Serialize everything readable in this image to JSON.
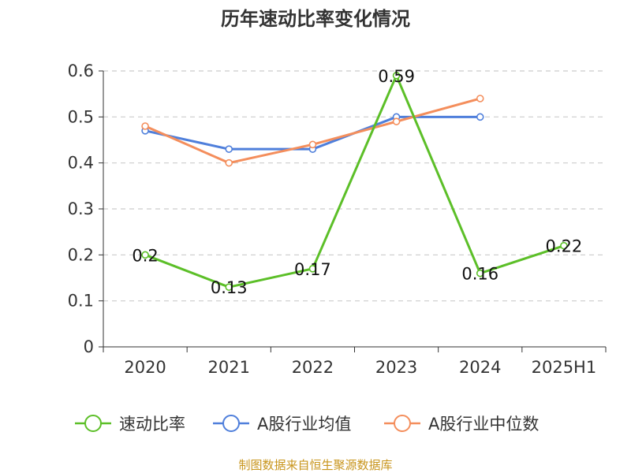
{
  "chart_data": {
    "type": "line",
    "title": "历年速动比率变化情况",
    "categories": [
      "2020",
      "2021",
      "2022",
      "2023",
      "2024",
      "2025H1"
    ],
    "ylim": [
      0,
      0.6
    ],
    "yticks": [
      "0",
      "0.1",
      "0.2",
      "0.3",
      "0.4",
      "0.5",
      "0.6"
    ],
    "xlabel": "",
    "ylabel": "",
    "grid": true,
    "legend_position": "bottom",
    "series": [
      {
        "name": "速动比率",
        "color": "#5cbf28",
        "values": [
          0.2,
          0.13,
          0.17,
          0.59,
          0.16,
          0.22
        ],
        "data_labels": [
          "0.2",
          "0.13",
          "0.17",
          "0.59",
          "0.16",
          "0.22"
        ]
      },
      {
        "name": "A股行业均值",
        "color": "#4f7fdb",
        "values": [
          0.47,
          0.43,
          0.43,
          0.5,
          0.5,
          null
        ]
      },
      {
        "name": "A股行业中位数",
        "color": "#f48e5c",
        "values": [
          0.48,
          0.4,
          0.44,
          0.49,
          0.54,
          null
        ]
      }
    ]
  },
  "source": "制图数据来自恒生聚源数据库"
}
